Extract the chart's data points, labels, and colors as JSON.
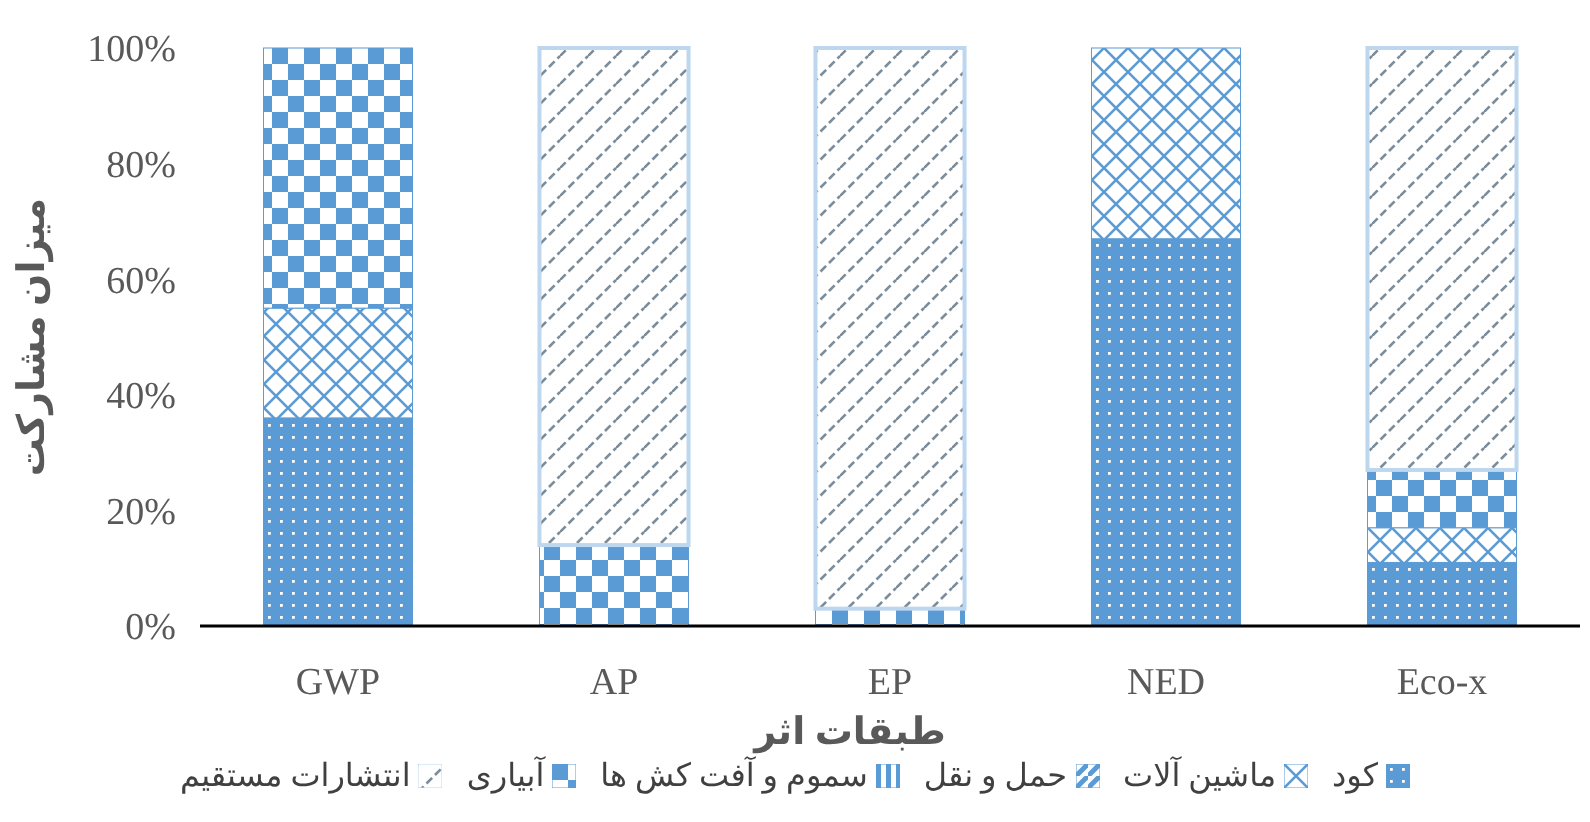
{
  "chart_data": {
    "type": "bar",
    "stacked": true,
    "xlabel": "طبقات اثر",
    "ylabel": "میزان مشارکت",
    "categories": [
      "GWP",
      "AP",
      "EP",
      "NED",
      "Eco-x"
    ],
    "series": [
      {
        "name": "کود",
        "color": "#5b9bd5",
        "values": [
          36,
          0,
          0,
          67,
          11
        ]
      },
      {
        "name": "ماشین آلات",
        "color": "#5b9bd5",
        "values": [
          19,
          0,
          0,
          33,
          6
        ]
      },
      {
        "name": "حمل و نقل",
        "color": "#5b9bd5",
        "values": [
          0,
          0,
          0,
          0,
          0
        ]
      },
      {
        "name": "سموم و آفت کش ها",
        "color": "#5b9bd5",
        "values": [
          0,
          0,
          0,
          0,
          0
        ]
      },
      {
        "name": "آبیاری",
        "color": "#5b9bd5",
        "values": [
          45,
          14,
          3,
          0,
          10
        ]
      },
      {
        "name": "انتشارات مستقیم",
        "color": "#bdd7ee",
        "values": [
          0,
          86,
          97,
          0,
          73
        ]
      }
    ],
    "ylim": [
      0,
      100
    ],
    "yticks": [
      {
        "value": 0,
        "label": "0%"
      },
      {
        "value": 20,
        "label": "20%"
      },
      {
        "value": 40,
        "label": "40%"
      },
      {
        "value": 60,
        "label": "60%"
      },
      {
        "value": 80,
        "label": "80%"
      },
      {
        "value": 100,
        "label": "100%"
      }
    ],
    "grid": false,
    "legend": "bottom"
  }
}
